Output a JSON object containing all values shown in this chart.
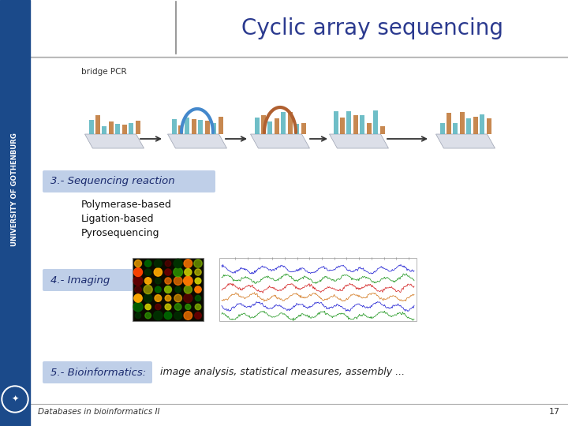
{
  "title": "Cyclic array sequencing",
  "title_color": "#2B3A8F",
  "title_fontsize": 20,
  "bg_color": "#FFFFFF",
  "left_bar_color": "#1B4A8A",
  "bridge_pcr_label": "bridge PCR",
  "step3_label": "3.- Sequencing reaction",
  "step3_sub": [
    "Polymerase-based",
    "Ligation-based",
    "Pyrosequencing"
  ],
  "step4_label": "4.- Imaging",
  "step5_label": "5.- Bioinformatics:",
  "step5_sub": "image analysis, statistical measures, assembly ...",
  "footer_text": "Databases in bioinformatics II",
  "footer_number": "17",
  "highlight_color": "#BFCFE8",
  "text_color": "#2B3A8F",
  "dark_text": "#1A2A6E",
  "sub_text_color": "#1A2A6E"
}
